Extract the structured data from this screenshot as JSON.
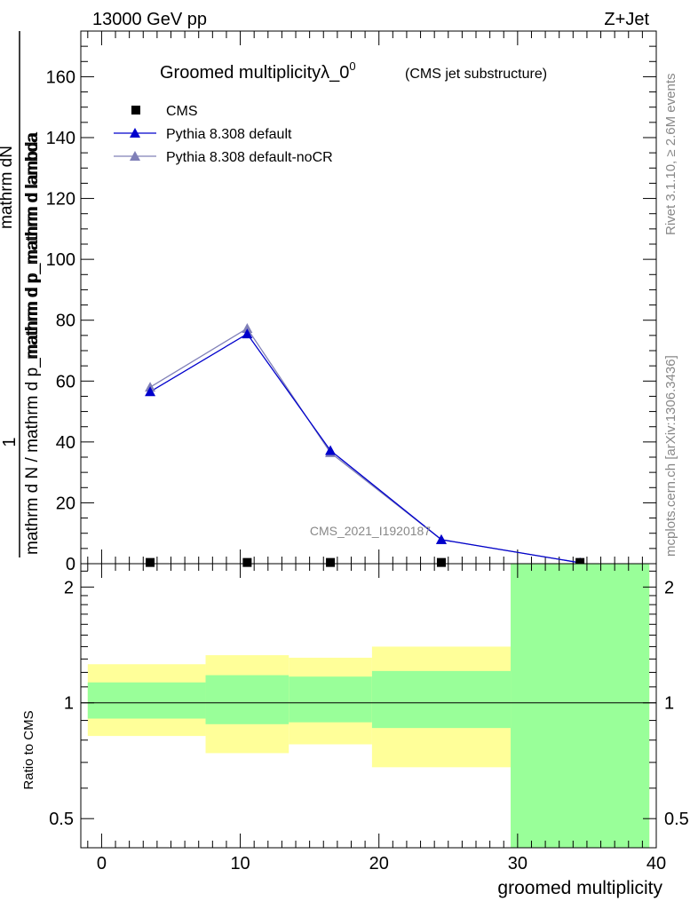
{
  "header": {
    "energy_label": "13000 GeV pp",
    "process_label": "Z+Jet"
  },
  "side_labels": {
    "rivet": "Rivet 3.1.10, ≥ 2.6M events",
    "site": "mcplots.cern.ch [arXiv:1306.3436]"
  },
  "chart_data": [
    {
      "type": "line",
      "title": "Groomed multiplicityλ_0",
      "title_superscript": "0",
      "subtitle": "(CMS jet substructure)",
      "analysis_tag": "CMS_2021_I1920187",
      "ylabel_numerator": "mathrm dN",
      "ylabel_denominator": "mathrm d N / mathrm d p_mathrm d p_mathrm d lambda",
      "ylabel_one": "1",
      "ylabel_inner": "mathrm d p_mathrm d lambda",
      "xlim": [
        -1.5,
        40
      ],
      "ylim": [
        0,
        175
      ],
      "yticks": [
        0,
        20,
        40,
        60,
        80,
        100,
        120,
        140,
        160
      ],
      "grid": false,
      "legend_position": "top-left",
      "series": [
        {
          "name": "CMS",
          "marker": "square",
          "color": "#000000",
          "x": [
            3.5,
            10.5,
            16.5,
            24.5,
            34.5
          ],
          "y": [
            0.4,
            0.4,
            0.4,
            0.4,
            0.4
          ]
        },
        {
          "name": "Pythia 8.308 default",
          "marker": "triangle",
          "color": "#0000cc",
          "x": [
            3.5,
            10.5,
            16.5,
            24.5,
            34.5
          ],
          "y": [
            56.5,
            75.5,
            37.2,
            7.9,
            0.3
          ]
        },
        {
          "name": "Pythia 8.308 default-noCR",
          "marker": "triangle",
          "color": "#8080b8",
          "x": [
            3.5,
            10.5,
            16.5,
            24.5,
            34.5
          ],
          "y": [
            58.0,
            77.3,
            36.5,
            7.9,
            0.3
          ]
        }
      ]
    },
    {
      "type": "area",
      "ylabel": "Ratio to CMS",
      "xlabel": "groomed multiplicity",
      "scale": "log",
      "xlim": [
        -1.5,
        40
      ],
      "ylim": [
        0.42,
        2.3
      ],
      "xticks": [
        0,
        10,
        20,
        30,
        40
      ],
      "yticks": [
        0.5,
        1,
        2
      ],
      "reference_line": 1,
      "bins": [
        {
          "x0": -1,
          "x1": 7.5,
          "stat_low": 0.91,
          "stat_high": 1.13,
          "total_low": 0.82,
          "total_high": 1.26
        },
        {
          "x0": 7.5,
          "x1": 13.5,
          "stat_low": 0.88,
          "stat_high": 1.18,
          "total_low": 0.74,
          "total_high": 1.33
        },
        {
          "x0": 13.5,
          "x1": 19.5,
          "stat_low": 0.89,
          "stat_high": 1.17,
          "total_low": 0.78,
          "total_high": 1.31
        },
        {
          "x0": 19.5,
          "x1": 29.5,
          "stat_low": 0.86,
          "stat_high": 1.21,
          "total_low": 0.68,
          "total_high": 1.4
        },
        {
          "x0": 29.5,
          "x1": 39.5,
          "stat_low": 0.42,
          "stat_high": 2.3,
          "total_low": 0.42,
          "total_high": 2.3
        }
      ],
      "band_colors": {
        "stat": "#99ff99",
        "total": "#ffff99"
      }
    }
  ]
}
